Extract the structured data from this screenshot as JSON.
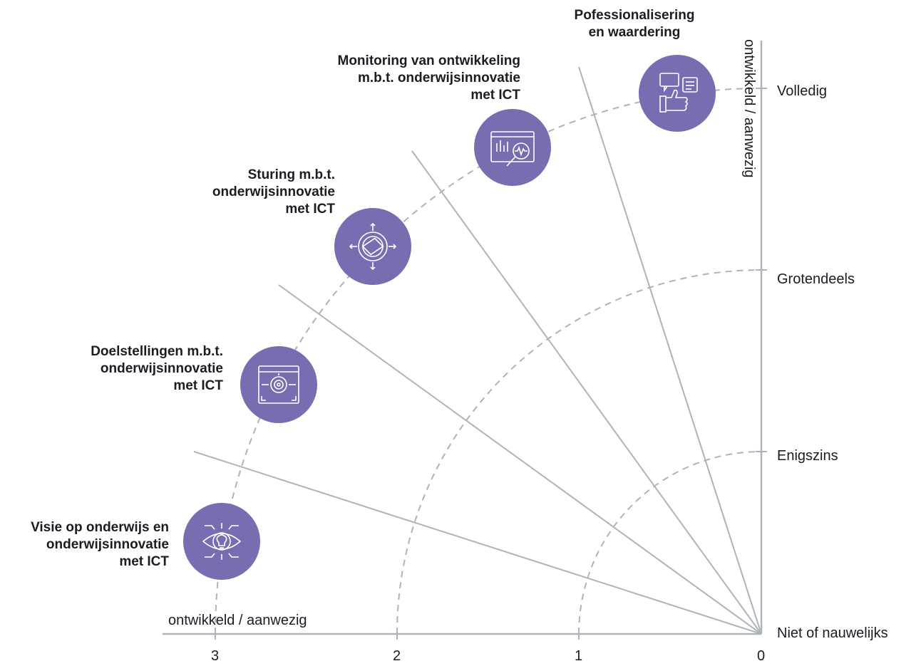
{
  "colors": {
    "circle": "#7a6cb0",
    "axis": "#aeb4bc",
    "dash": "#aeb4bc",
    "text": "#1c1c24"
  },
  "levels": {
    "volledig": "Volledig",
    "grotendeels": "Grotendeels",
    "enigszins": "Enigszins",
    "niet": "Niet of nauwelijks"
  },
  "axis": {
    "horizontal_label": "ontwikkeld / aanwezig",
    "vertical_label": "ontwikkeld / aanwezig",
    "ticks": [
      "3",
      "2",
      "1",
      "0"
    ]
  },
  "dimensions": [
    {
      "label": "Visie op onderwijs en\nonderwijsinnovatie\nmet ICT",
      "icon": "eye-lightbulb-icon"
    },
    {
      "label": "Doelstellingen m.b.t.\nonderwijsinnovatie\nmet ICT",
      "icon": "target-window-icon"
    },
    {
      "label": "Sturing m.b.t.\nonderwijsinnovatie\nmet ICT",
      "icon": "compass-icon"
    },
    {
      "label": "Monitoring van ontwikkeling\nm.b.t. onderwijsinnovatie\nmet ICT",
      "icon": "analytics-magnifier-icon"
    },
    {
      "label": "Pofessionalisering\nen waardering",
      "icon": "thumbs-up-rating-icon"
    }
  ]
}
